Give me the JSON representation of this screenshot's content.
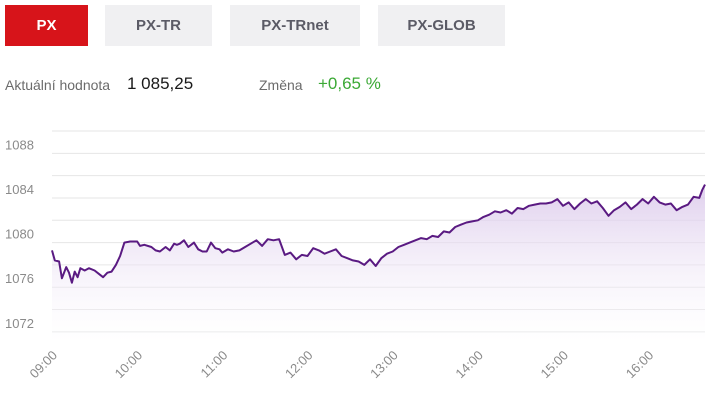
{
  "tabs": [
    {
      "label": "PX",
      "active": true
    },
    {
      "label": "PX-TR",
      "active": false
    },
    {
      "label": "PX-TRnet",
      "active": false
    },
    {
      "label": "PX-GLOB",
      "active": false
    }
  ],
  "stats": {
    "current_label": "Aktuální hodnota",
    "current_value": "1 085,25",
    "change_label": "Změna",
    "change_value": "+0,65 %"
  },
  "colors": {
    "accent": "#d7141a",
    "tab_inactive_bg": "#f0f0f2",
    "positive": "#3ba935",
    "line": "#5a1a82",
    "area_top": "#d9c6ea",
    "grid": "#e6e6e6"
  },
  "chart_data": {
    "type": "area",
    "title": "",
    "xlabel": "",
    "ylabel": "",
    "ylim": [
      1071,
      1090
    ],
    "xlim": [
      "09:00",
      "16:40"
    ],
    "yticks": [
      "1072",
      "1076",
      "1080",
      "1084",
      "1088"
    ],
    "xticks": [
      "09:00",
      "10:00",
      "11:00",
      "12:00",
      "13:00",
      "14:00",
      "15:00",
      "16:00"
    ],
    "grid": true,
    "series": [
      {
        "x": [
          "09:00",
          "09:02",
          "09:05",
          "09:07",
          "09:10",
          "09:12",
          "09:14",
          "09:16",
          "09:18",
          "09:20",
          "09:23",
          "09:26",
          "09:30",
          "09:33",
          "09:36",
          "09:39",
          "09:42",
          "09:45",
          "09:48",
          "09:51",
          "09:55",
          "09:58",
          "10:00",
          "10:02",
          "10:05",
          "10:10",
          "10:13",
          "10:16",
          "10:20",
          "10:23",
          "10:26",
          "10:28",
          "10:30",
          "10:33",
          "10:36",
          "10:40",
          "10:43",
          "10:46",
          "10:49",
          "10:52",
          "10:55",
          "10:58",
          "11:00",
          "11:04",
          "11:08",
          "11:12",
          "11:16",
          "11:20",
          "11:24",
          "11:28",
          "11:32",
          "11:36",
          "11:40",
          "11:44",
          "11:48",
          "11:52",
          "11:56",
          "12:00",
          "12:04",
          "12:08",
          "12:12",
          "12:16",
          "12:20",
          "12:24",
          "12:28",
          "12:32",
          "12:36",
          "12:40",
          "12:44",
          "12:48",
          "12:52",
          "12:56",
          "13:00",
          "13:04",
          "13:08",
          "13:12",
          "13:16",
          "13:20",
          "13:24",
          "13:28",
          "13:32",
          "13:36",
          "13:40",
          "13:44",
          "13:48",
          "13:52",
          "13:56",
          "14:00",
          "14:04",
          "14:08",
          "14:12",
          "14:16",
          "14:20",
          "14:24",
          "14:28",
          "14:32",
          "14:36",
          "14:40",
          "14:44",
          "14:48",
          "14:52",
          "14:56",
          "15:00",
          "15:04",
          "15:08",
          "15:12",
          "15:16",
          "15:20",
          "15:24",
          "15:28",
          "15:32",
          "15:36",
          "15:40",
          "15:44",
          "15:48",
          "15:52",
          "15:56",
          "16:00",
          "16:04",
          "16:08",
          "16:12",
          "16:16",
          "16:20",
          "16:24",
          "16:28",
          "16:32",
          "16:36",
          "16:38",
          "16:40"
        ],
        "values": [
          1079.3,
          1078.4,
          1078.3,
          1076.8,
          1077.8,
          1077.3,
          1076.4,
          1077.4,
          1076.9,
          1077.7,
          1077.5,
          1077.7,
          1077.5,
          1077.2,
          1076.9,
          1077.3,
          1077.4,
          1078.0,
          1078.8,
          1080.0,
          1080.1,
          1080.1,
          1080.1,
          1079.7,
          1079.8,
          1079.6,
          1079.3,
          1079.2,
          1079.6,
          1079.3,
          1079.9,
          1079.8,
          1079.9,
          1080.2,
          1079.6,
          1080.0,
          1079.4,
          1079.2,
          1079.2,
          1080.0,
          1079.5,
          1079.4,
          1079.1,
          1079.4,
          1079.2,
          1079.3,
          1079.6,
          1079.9,
          1080.2,
          1079.7,
          1080.3,
          1080.2,
          1080.3,
          1078.9,
          1079.1,
          1078.5,
          1078.9,
          1078.8,
          1079.5,
          1079.3,
          1079.0,
          1079.2,
          1079.4,
          1078.8,
          1078.6,
          1078.4,
          1078.3,
          1078.0,
          1078.5,
          1077.9,
          1078.6,
          1079.0,
          1079.2,
          1079.6,
          1079.8,
          1080.0,
          1080.2,
          1080.4,
          1080.3,
          1080.6,
          1080.5,
          1081.0,
          1080.9,
          1081.4,
          1081.6,
          1081.8,
          1081.9,
          1082.0,
          1082.3,
          1082.5,
          1082.8,
          1082.7,
          1082.9,
          1082.6,
          1083.1,
          1083.0,
          1083.3,
          1083.4,
          1083.5,
          1083.5,
          1083.6,
          1083.9,
          1083.3,
          1083.6,
          1083.0,
          1083.5,
          1083.9,
          1083.5,
          1083.7,
          1083.1,
          1082.4,
          1082.9,
          1083.2,
          1083.6,
          1083.0,
          1083.4,
          1083.9,
          1083.5,
          1084.1,
          1083.6,
          1083.4,
          1083.5,
          1082.9,
          1083.2,
          1083.4,
          1084.1,
          1084.0,
          1084.7,
          1085.2
        ]
      }
    ]
  }
}
